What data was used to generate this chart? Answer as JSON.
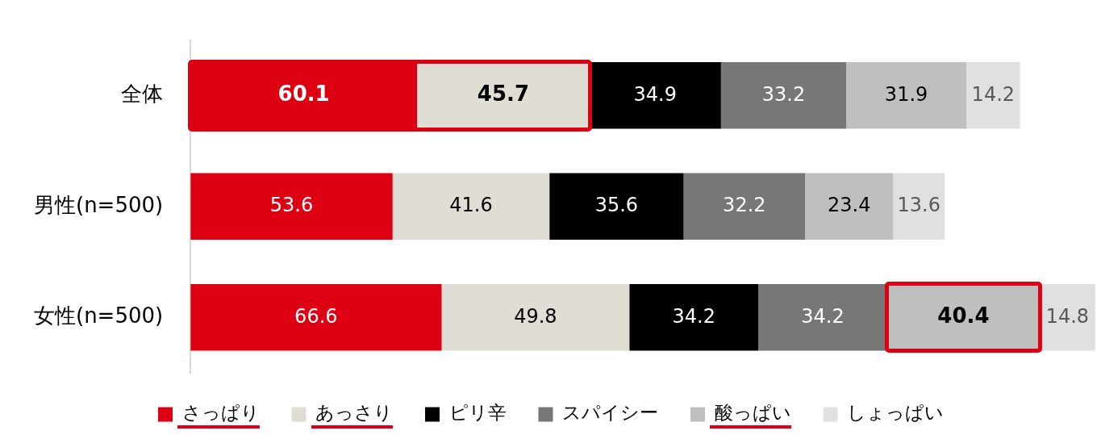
{
  "chart_data": {
    "type": "bar",
    "orientation": "horizontal",
    "stacked": true,
    "categories": [
      "全体",
      "男性(n=500)",
      "女性(n=500)"
    ],
    "series": [
      {
        "name": "さっぱり",
        "color": "#dc0012",
        "values": [
          60.1,
          53.6,
          66.6
        ]
      },
      {
        "name": "あっさり",
        "color": "#e0ddd5",
        "values": [
          45.7,
          41.6,
          49.8
        ]
      },
      {
        "name": "ピリ辛",
        "color": "#000000",
        "values": [
          34.9,
          35.6,
          34.2
        ]
      },
      {
        "name": "スパイシー",
        "color": "#777777",
        "values": [
          33.2,
          32.2,
          34.2
        ]
      },
      {
        "name": "酸っぱい",
        "color": "#bfbfbf",
        "values": [
          31.9,
          23.4,
          40.4
        ]
      },
      {
        "name": "しょっぱい",
        "color": "#e0e0e0",
        "values": [
          14.2,
          13.6,
          14.8
        ]
      }
    ],
    "data_labels": true,
    "legend": "bottom"
  }
}
